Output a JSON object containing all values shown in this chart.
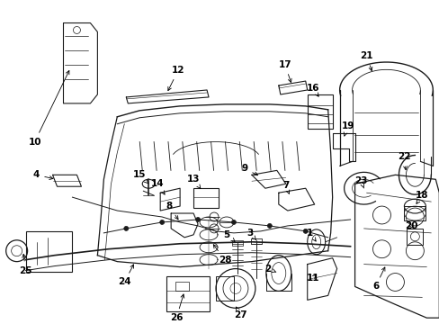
{
  "background_color": "#ffffff",
  "line_color": "#1a1a1a",
  "figsize": [
    4.89,
    3.6
  ],
  "dpi": 100,
  "label_fontsize": 7.5
}
